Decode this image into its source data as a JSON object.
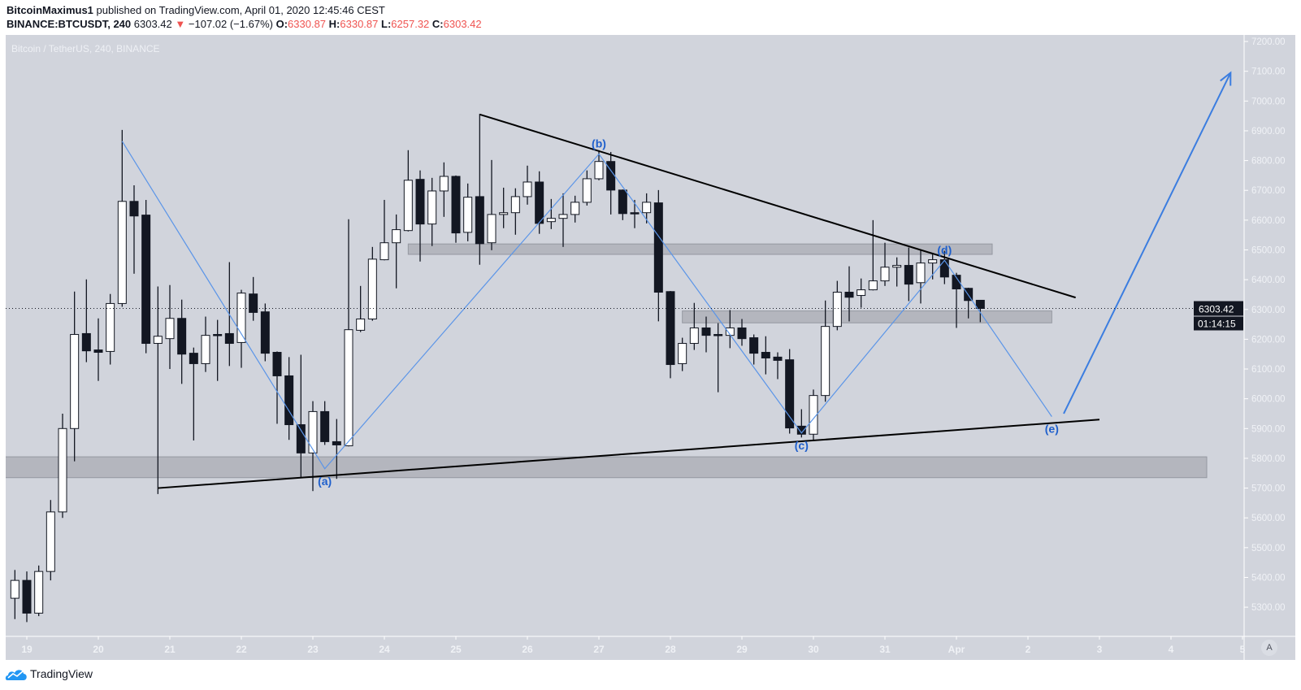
{
  "header": {
    "author": "BitcoinMaximus1",
    "published": "published on TradingView.com, April 01, 2020 12:45:46 CEST",
    "symbol": "BINANCE:BTCUSDT, 240",
    "last": "6303.42",
    "change_icon": "triangle-down",
    "change": "−107.02 (−1.67%)",
    "o_label": "O:",
    "o": "6330.87",
    "h_label": "H:",
    "h": "6330.87",
    "l_label": "L:",
    "l": "6257.32",
    "c_label": "C:",
    "c": "6303.42"
  },
  "colors": {
    "background": "#d1d4dc",
    "candle_up": "#ffffff",
    "candle_down": "#131722",
    "wave_line": "#5b95e8",
    "wave_label": "#1e5fcc",
    "arrow": "#3b7de0",
    "zone": "#a9acb4",
    "trendline": "#000000",
    "ohlc_values": "#ef5350"
  },
  "chart_data": {
    "type": "candlestick",
    "title": "Bitcoin / TetherUS, 240, BINANCE",
    "ylim": [
      5202,
      7222
    ],
    "grid": false,
    "y_ticks": [
      "7200.00",
      "7100.00",
      "7000.00",
      "6900.00",
      "6800.00",
      "6700.00",
      "6600.00",
      "6500.00",
      "6400.00",
      "6300.00",
      "6200.00",
      "6100.00",
      "6000.00",
      "5900.00",
      "5800.00",
      "5700.00",
      "5600.00",
      "5500.00",
      "5400.00",
      "5300.00"
    ],
    "x_ticks": [
      {
        "label": "19",
        "t": "03-19 00:00"
      },
      {
        "label": "20",
        "t": "03-20 00:00"
      },
      {
        "label": "21",
        "t": "03-21 00:00"
      },
      {
        "label": "22",
        "t": "03-22 00:00"
      },
      {
        "label": "23",
        "t": "03-23 00:00"
      },
      {
        "label": "24",
        "t": "03-24 00:00"
      },
      {
        "label": "25",
        "t": "03-25 00:00"
      },
      {
        "label": "26",
        "t": "03-26 00:00"
      },
      {
        "label": "27",
        "t": "03-27 00:00"
      },
      {
        "label": "28",
        "t": "03-28 00:00"
      },
      {
        "label": "29",
        "t": "03-29 00:00"
      },
      {
        "label": "30",
        "t": "03-30 00:00"
      },
      {
        "label": "31",
        "t": "03-31 00:00"
      },
      {
        "label": "Apr",
        "t": "04-01 00:00"
      },
      {
        "label": "2",
        "t": "04-02 00:00"
      },
      {
        "label": "3",
        "t": "04-03 00:00"
      },
      {
        "label": "4",
        "t": "04-04 00:00"
      },
      {
        "label": "5",
        "t": "04-05 00:00"
      }
    ],
    "current_price": "6303.42",
    "countdown": "01:14:15",
    "candles_format": [
      "time",
      "open",
      "high",
      "low",
      "close"
    ],
    "candles": [
      [
        "03-18 20:00",
        5330,
        5425,
        5260,
        5390
      ],
      [
        "03-19 00:00",
        5390,
        5420,
        5250,
        5280
      ],
      [
        "03-19 04:00",
        5280,
        5440,
        5270,
        5420
      ],
      [
        "03-19 08:00",
        5420,
        5660,
        5390,
        5620
      ],
      [
        "03-19 12:00",
        5620,
        5950,
        5600,
        5900
      ],
      [
        "03-19 16:00",
        5900,
        6360,
        5790,
        6216
      ],
      [
        "03-19 20:00",
        6219,
        6401,
        6123,
        6161
      ],
      [
        "03-20 00:00",
        6164,
        6270,
        6060,
        6156
      ],
      [
        "03-20 04:00",
        6159,
        6352,
        6115,
        6320
      ],
      [
        "03-20 08:00",
        6320,
        6903,
        6309,
        6663
      ],
      [
        "03-20 12:00",
        6663,
        6717,
        6420,
        6614
      ],
      [
        "03-20 16:00",
        6617,
        6668,
        6153,
        6186
      ],
      [
        "03-20 20:00",
        6186,
        6377,
        5680,
        6210
      ],
      [
        "03-21 00:00",
        6202,
        6382,
        6100,
        6270
      ],
      [
        "03-21 04:00",
        6270,
        6333,
        6050,
        6150
      ],
      [
        "03-21 08:00",
        6153,
        6172,
        5860,
        6118
      ],
      [
        "03-21 12:00",
        6118,
        6276,
        6090,
        6213
      ],
      [
        "03-21 16:00",
        6216,
        6265,
        6060,
        6213
      ],
      [
        "03-21 20:00",
        6219,
        6459,
        6110,
        6186
      ],
      [
        "03-22 00:00",
        6189,
        6366,
        6104,
        6355
      ],
      [
        "03-22 04:00",
        6352,
        6409,
        6262,
        6290
      ],
      [
        "03-22 08:00",
        6292,
        6320,
        6126,
        6153
      ],
      [
        "03-22 12:00",
        6156,
        6159,
        5916,
        6077
      ],
      [
        "03-22 16:00",
        6077,
        6140,
        5862,
        5913
      ],
      [
        "03-22 20:00",
        5913,
        6148,
        5736,
        5818
      ],
      [
        "03-23 00:00",
        5818,
        5992,
        5690,
        5957
      ],
      [
        "03-23 04:00",
        5957,
        5992,
        5845,
        5856
      ],
      [
        "03-23 08:00",
        5856,
        5932,
        5731,
        5845
      ],
      [
        "03-23 12:00",
        5842,
        6603,
        5840,
        6232
      ],
      [
        "03-23 16:00",
        6230,
        6379,
        6224,
        6268
      ],
      [
        "03-23 20:00",
        6268,
        6510,
        6262,
        6469
      ],
      [
        "03-24 00:00",
        6467,
        6668,
        6465,
        6524
      ],
      [
        "03-24 04:00",
        6524,
        6619,
        6371,
        6568
      ],
      [
        "03-24 08:00",
        6565,
        6835,
        6562,
        6734
      ],
      [
        "03-24 12:00",
        6737,
        6767,
        6461,
        6587
      ],
      [
        "03-24 16:00",
        6587,
        6742,
        6513,
        6698
      ],
      [
        "03-24 20:00",
        6698,
        6794,
        6611,
        6747
      ],
      [
        "03-25 00:00",
        6747,
        6750,
        6524,
        6557
      ],
      [
        "03-25 04:00",
        6559,
        6723,
        6529,
        6677
      ],
      [
        "03-25 08:00",
        6679,
        6957,
        6450,
        6521
      ],
      [
        "03-25 12:00",
        6524,
        6802,
        6499,
        6619
      ],
      [
        "03-25 16:00",
        6619,
        6709,
        6573,
        6625
      ],
      [
        "03-25 20:00",
        6625,
        6707,
        6551,
        6679
      ],
      [
        "03-26 00:00",
        6679,
        6783,
        6652,
        6728
      ],
      [
        "03-26 04:00",
        6728,
        6764,
        6554,
        6589
      ],
      [
        "03-26 08:00",
        6595,
        6671,
        6570,
        6606
      ],
      [
        "03-26 12:00",
        6606,
        6690,
        6510,
        6619
      ],
      [
        "03-26 16:00",
        6619,
        6682,
        6592,
        6660
      ],
      [
        "03-26 20:00",
        6660,
        6767,
        6649,
        6739
      ],
      [
        "03-27 00:00",
        6739,
        6835,
        6734,
        6797
      ],
      [
        "03-27 04:00",
        6797,
        6829,
        6619,
        6701
      ],
      [
        "03-27 08:00",
        6701,
        6703,
        6600,
        6622
      ],
      [
        "03-27 12:00",
        6625,
        6668,
        6573,
        6622
      ],
      [
        "03-27 16:00",
        6625,
        6690,
        6589,
        6660
      ],
      [
        "03-27 20:00",
        6658,
        6701,
        6260,
        6358
      ],
      [
        "03-28 00:00",
        6360,
        6362,
        6069,
        6115
      ],
      [
        "03-28 04:00",
        6118,
        6205,
        6093,
        6186
      ],
      [
        "03-28 08:00",
        6186,
        6322,
        6164,
        6238
      ],
      [
        "03-28 12:00",
        6238,
        6276,
        6156,
        6213
      ],
      [
        "03-28 16:00",
        6216,
        6254,
        6022,
        6213
      ],
      [
        "03-28 20:00",
        6213,
        6298,
        6170,
        6238
      ],
      [
        "03-29 00:00",
        6238,
        6268,
        6178,
        6202
      ],
      [
        "03-29 04:00",
        6205,
        6216,
        6115,
        6153
      ],
      [
        "03-29 08:00",
        6156,
        6210,
        6082,
        6137
      ],
      [
        "03-29 12:00",
        6140,
        6156,
        6066,
        6129
      ],
      [
        "03-29 16:00",
        6131,
        6167,
        5883,
        5902
      ],
      [
        "03-29 20:00",
        5908,
        5965,
        5870,
        5881
      ],
      [
        "03-30 00:00",
        5881,
        6031,
        5859,
        6011
      ],
      [
        "03-30 04:00",
        6011,
        6330,
        5990,
        6243
      ],
      [
        "03-30 08:00",
        6243,
        6396,
        6230,
        6358
      ],
      [
        "03-30 12:00",
        6358,
        6445,
        6260,
        6341
      ],
      [
        "03-30 16:00",
        6347,
        6404,
        6306,
        6366
      ],
      [
        "03-30 20:00",
        6366,
        6600,
        6364,
        6396
      ],
      [
        "03-31 00:00",
        6396,
        6524,
        6379,
        6442
      ],
      [
        "03-31 04:00",
        6442,
        6475,
        6377,
        6448
      ],
      [
        "03-31 08:00",
        6448,
        6508,
        6328,
        6385
      ],
      [
        "03-31 12:00",
        6390,
        6500,
        6320,
        6456
      ],
      [
        "03-31 16:00",
        6456,
        6489,
        6401,
        6467
      ],
      [
        "03-31 20:00",
        6467,
        6497,
        6385,
        6409
      ],
      [
        "04-01 00:00",
        6415,
        6423,
        6238,
        6369
      ],
      [
        "04-01 04:00",
        6371,
        6373,
        6270,
        6330
      ],
      [
        "04-01 08:00",
        6330.87,
        6330.87,
        6257.32,
        6303.42
      ]
    ],
    "drawings": {
      "zones": [
        {
          "from": "03-18 16:00",
          "to": "04-04 12:00",
          "low": 5735,
          "high": 5805
        },
        {
          "from": "03-24 08:00",
          "to": "04-01 12:00",
          "low": 6485,
          "high": 6520
        },
        {
          "from": "03-28 04:00",
          "to": "04-02 08:00",
          "low": 6255,
          "high": 6295
        }
      ],
      "trendlines": [
        {
          "name": "descending",
          "points": [
            [
              "03-25 08:00",
              6955
            ],
            [
              "04-02 16:00",
              6340
            ]
          ]
        },
        {
          "name": "ascending",
          "points": [
            [
              "03-20 20:00",
              5700
            ],
            [
              "04-03 00:00",
              5930
            ]
          ]
        }
      ],
      "wave": {
        "points": [
          [
            "03-20 08:00",
            6865
          ],
          [
            "03-23 04:00",
            5765
          ],
          [
            "03-27 00:00",
            6822
          ],
          [
            "03-29 20:00",
            5885
          ],
          [
            "03-31 20:00",
            6465
          ],
          [
            "04-02 08:00",
            5940
          ]
        ],
        "labels": [
          {
            "text": "(a)",
            "t": "03-23 04:00",
            "price": 5765,
            "pos": "below"
          },
          {
            "text": "(b)",
            "t": "03-27 00:00",
            "price": 6822,
            "pos": "above"
          },
          {
            "text": "(c)",
            "t": "03-29 20:00",
            "price": 5885,
            "pos": "below"
          },
          {
            "text": "(d)",
            "t": "03-31 20:00",
            "price": 6465,
            "pos": "above"
          },
          {
            "text": "(e)",
            "t": "04-02 08:00",
            "price": 5940,
            "pos": "below"
          }
        ]
      },
      "arrow": {
        "points": [
          [
            "04-02 12:00",
            5950
          ],
          [
            "04-04 20:00",
            7095
          ]
        ]
      }
    }
  },
  "price_axis": {
    "auto_button": "A"
  },
  "footer": {
    "logo_text": "TradingView"
  }
}
